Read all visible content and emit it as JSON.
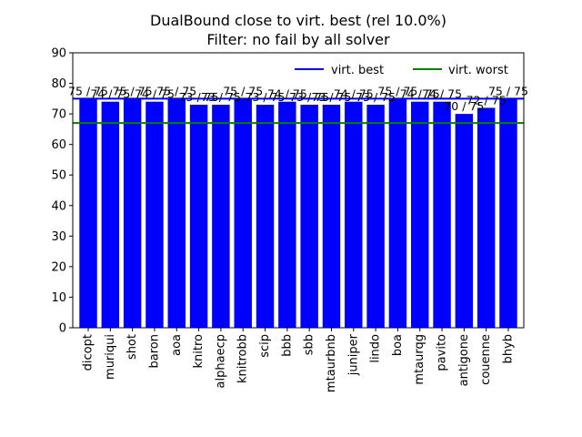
{
  "chart_data": {
    "type": "bar",
    "title": "DualBound close to virt. best (rel 10.0%)",
    "subtitle": "Filter: no fail by all solver",
    "xlabel": "",
    "ylabel": "",
    "ylim": [
      0,
      90
    ],
    "yticks": [
      0,
      10,
      20,
      30,
      40,
      50,
      60,
      70,
      80,
      90
    ],
    "grid": false,
    "legend_position": "top-right",
    "categories": [
      "dicopt",
      "muriqui",
      "shot",
      "baron",
      "aoa",
      "knitro",
      "alphaecp",
      "knitrobb",
      "scip",
      "bbb",
      "sbb",
      "mtaurbnb",
      "juniper",
      "lindo",
      "boa",
      "mtaurqg",
      "pavito",
      "antigone",
      "couenne",
      "bhyb"
    ],
    "values": [
      75,
      74,
      75,
      74,
      75,
      73,
      73,
      75,
      73,
      74,
      73,
      73,
      74,
      73,
      75,
      74,
      74,
      70,
      72,
      75
    ],
    "bar_labels": [
      "75 / 75",
      "74 / 75",
      "75 / 75",
      "74 / 75",
      "75 / 75",
      "73 / 75",
      "73 / 75",
      "75 / 75",
      "73 / 75",
      "74 / 75",
      "73 / 75",
      "73 / 75",
      "74 / 75",
      "73 / 75",
      "75 / 75",
      "74 / 75",
      "74 / 75",
      "70 / 75",
      "72 / 75",
      "75 / 75"
    ],
    "bar_color": "#0000ff",
    "reference_lines": [
      {
        "name": "virt. best",
        "value": 75,
        "color": "#0000ff"
      },
      {
        "name": "virt. worst",
        "value": 67,
        "color": "#008000"
      }
    ]
  }
}
